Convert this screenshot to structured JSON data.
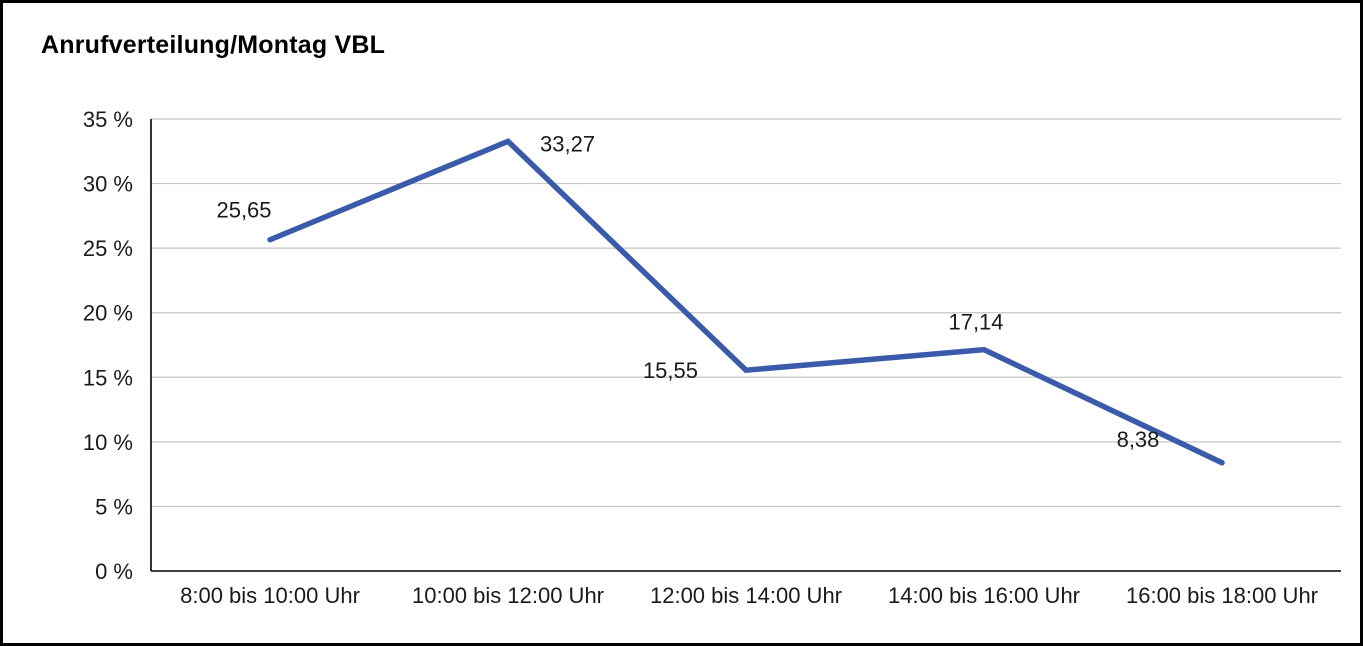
{
  "chart_data": {
    "type": "line",
    "title": "Anrufverteilung/Montag VBL",
    "categories": [
      "8:00 bis 10:00 Uhr",
      "10:00 bis 12:00 Uhr",
      "12:00 bis 14:00 Uhr",
      "14:00 bis 16:00 Uhr",
      "16:00 bis 18:00 Uhr"
    ],
    "values": [
      25.65,
      33.27,
      15.55,
      17.14,
      8.38
    ],
    "value_labels": [
      "25,65",
      "33,27",
      "15,55",
      "17,14",
      "8,38"
    ],
    "xlabel": "",
    "ylabel": "",
    "ylim": [
      0,
      35
    ],
    "ytick_step": 5,
    "ytick_labels": [
      "0 %",
      "5 %",
      "10 %",
      "15 %",
      "20 %",
      "25 %",
      "30 %",
      "35 %"
    ],
    "grid": "horizontal",
    "legend": "none",
    "line_color": "#3a5ba9",
    "axis_color": "#000000",
    "gridline_color": "#c6c6c6"
  }
}
